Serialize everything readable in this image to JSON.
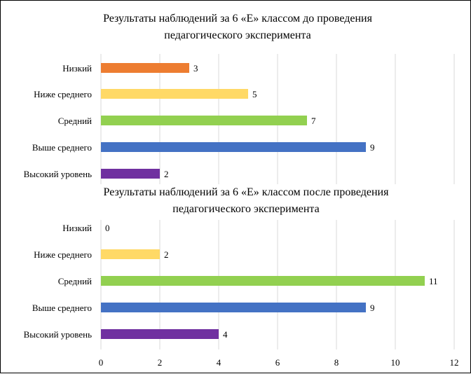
{
  "chart_data": [
    {
      "type": "bar",
      "orientation": "horizontal",
      "title_line1": "Результаты наблюдений за 6 «Е» классом до проведения",
      "title_line2": "педагогического эксперимента",
      "categories": [
        "Низкий",
        "Ниже среднего",
        "Средний",
        "Выше среднего",
        "Высокий уровень"
      ],
      "values": [
        3,
        5,
        7,
        9,
        2
      ],
      "colors": [
        "#ED7D31",
        "#FFD966",
        "#92D050",
        "#4472C4",
        "#7030A0"
      ],
      "xlim": [
        0,
        12
      ],
      "grid": true
    },
    {
      "type": "bar",
      "orientation": "horizontal",
      "title_line1": "Результаты наблюдений за 6 «Е» классом после проведения",
      "title_line2": "педагогического эксперимента",
      "categories": [
        "Низкий",
        "Ниже среднего",
        "Средний",
        "Выше среднего",
        "Высокий уровень"
      ],
      "values": [
        0,
        2,
        11,
        9,
        4
      ],
      "colors": [
        "#ED7D31",
        "#FFD966",
        "#92D050",
        "#4472C4",
        "#7030A0"
      ],
      "xlim": [
        0,
        12
      ],
      "xticks": [
        "0",
        "2",
        "4",
        "6",
        "8",
        "10",
        "12"
      ],
      "grid": true
    }
  ]
}
